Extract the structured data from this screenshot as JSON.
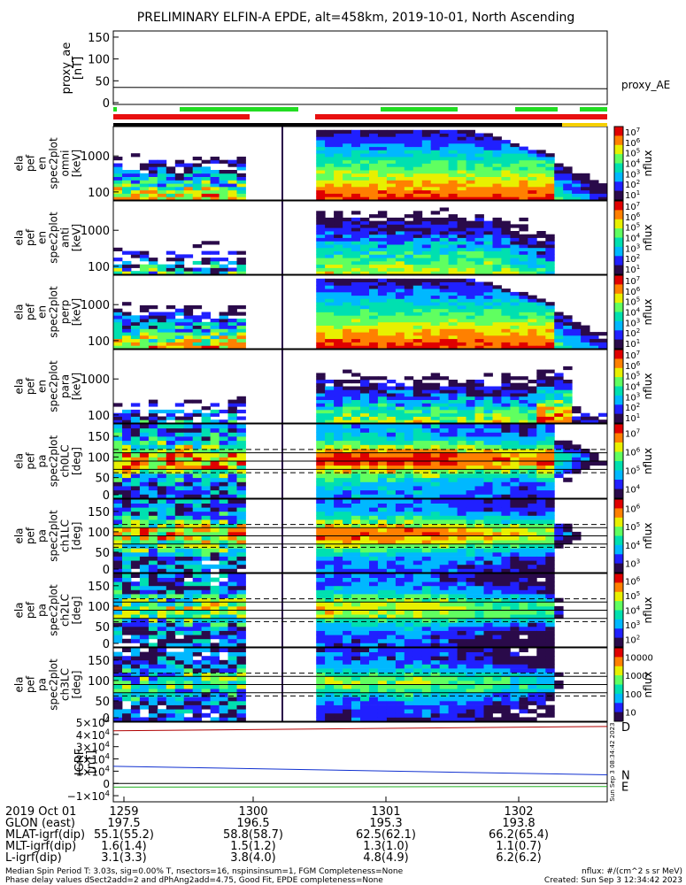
{
  "header": {
    "title": "PRELIMINARY ELFIN-A EPDE, alt=458km, 2019-10-01, North Ascending"
  },
  "colors": {
    "frame": "#000000",
    "status_green": "#22dd22",
    "status_red": "#e81010",
    "status_black": "#000000",
    "status_yellow": "#f6d000",
    "grf_d": "#b00000",
    "grf_n": "#1030d0",
    "grf_e": "#20b020",
    "colormap": [
      "#ffffff",
      "#2a0a4a",
      "#2020ff",
      "#00b8ff",
      "#00e0b0",
      "#60ff60",
      "#e8f000",
      "#ff8000",
      "#e00000"
    ]
  },
  "chart_data": [
    {
      "type": "line",
      "name": "proxy_ae",
      "ylabel": "proxy_ae\n[nT]",
      "yticks": [
        "150",
        "100",
        "50",
        "0"
      ],
      "ylim": [
        0,
        160
      ],
      "series": [
        {
          "name": "proxy_AE",
          "x": [
            0,
            1
          ],
          "values": [
            35,
            32
          ]
        }
      ]
    },
    {
      "type": "heatmap",
      "name": "omni",
      "ylabel": "ela\npef\nen\nspec2plot\nomni\n[keV]",
      "yticks": [
        "1000",
        "100"
      ],
      "log": true,
      "cbar_ticks": [
        "10^7",
        "10^6",
        "10^5",
        "10^4",
        "10^3",
        "10^2",
        "10^1"
      ],
      "cbar_label": "nflux"
    },
    {
      "type": "heatmap",
      "name": "anti",
      "ylabel": "ela\npef\nen\nspec2plot\nanti\n[keV]",
      "yticks": [
        "1000",
        "100"
      ],
      "log": true,
      "cbar_ticks": [
        "10^7",
        "10^6",
        "10^5",
        "10^4",
        "10^3",
        "10^2",
        "10^1"
      ],
      "cbar_label": "nflux"
    },
    {
      "type": "heatmap",
      "name": "perp",
      "ylabel": "ela\npef\nen\nspec2plot\nperp\n[keV]",
      "yticks": [
        "1000",
        "100"
      ],
      "log": true,
      "cbar_ticks": [
        "10^7",
        "10^6",
        "10^5",
        "10^4",
        "10^3",
        "10^2",
        "10^1"
      ],
      "cbar_label": "nflux"
    },
    {
      "type": "heatmap",
      "name": "para",
      "ylabel": "ela\npef\nen\nspec2plot\npara\n[keV]",
      "yticks": [
        "1000",
        "100"
      ],
      "log": true,
      "cbar_ticks": [
        "10^7",
        "10^6",
        "10^5",
        "10^4",
        "10^3",
        "10^2",
        "10^1"
      ],
      "cbar_label": "nflux"
    },
    {
      "type": "heatmap",
      "name": "ch0LC",
      "ylabel": "ela\npef\npa\nspec2plot\nch0LC\n[deg]",
      "yticks": [
        "150",
        "100",
        "50",
        "0"
      ],
      "ylim": [
        0,
        180
      ],
      "cbar_ticks": [
        "10^7",
        "10^6",
        "10^5",
        "10^4"
      ],
      "cbar_label": "nflux"
    },
    {
      "type": "heatmap",
      "name": "ch1LC",
      "ylabel": "ela\npef\npa\nspec2plot\nch1LC\n[deg]",
      "yticks": [
        "150",
        "100",
        "50",
        "0"
      ],
      "ylim": [
        0,
        180
      ],
      "cbar_ticks": [
        "10^6",
        "10^5",
        "10^4",
        "10^3"
      ],
      "cbar_label": "nflux"
    },
    {
      "type": "heatmap",
      "name": "ch2LC",
      "ylabel": "ela\npef\npa\nspec2plot\nch2LC\n[deg]",
      "yticks": [
        "150",
        "100",
        "50",
        "0"
      ],
      "ylim": [
        0,
        180
      ],
      "cbar_ticks": [
        "10^6",
        "10^5",
        "10^4",
        "10^3",
        "10^2"
      ],
      "cbar_label": "nflux"
    },
    {
      "type": "heatmap",
      "name": "ch3LC",
      "ylabel": "ela\npef\npa\nspec2plot\nch3LC\n[deg]",
      "yticks": [
        "150",
        "100",
        "50",
        "0"
      ],
      "ylim": [
        0,
        180
      ],
      "cbar_ticks": [
        "10000",
        "1000",
        "100",
        "10"
      ],
      "cbar_label": "nflux"
    },
    {
      "type": "line",
      "name": "IGRF",
      "ylabel": "IGRF\n[nT]",
      "yticks": [
        "5×10^4",
        "4×10^4",
        "3×10^4",
        "2×10^4",
        "1×10^4",
        "0",
        "−1×10^4"
      ],
      "ylim": [
        -15000,
        50000
      ],
      "series": [
        {
          "name": "D",
          "x": [
            0,
            1
          ],
          "values": [
            43000,
            46500
          ]
        },
        {
          "name": "N",
          "x": [
            0,
            1
          ],
          "values": [
            14000,
            7000
          ]
        },
        {
          "name": "E",
          "x": [
            0,
            1
          ],
          "values": [
            -3000,
            -2500
          ]
        }
      ],
      "stamp": "Sun Sep  3 08:34:42 2023"
    }
  ],
  "axis_table": {
    "rows": [
      {
        "label": "2019 Oct 01",
        "values": [
          "1259",
          "1300",
          "1301",
          "1302"
        ]
      },
      {
        "label": "GLON (east)",
        "values": [
          "197.5",
          "196.5",
          "195.3",
          "193.8"
        ]
      },
      {
        "label": "MLAT-igrf(dip)",
        "values": [
          "55.1(55.2)",
          "58.8(58.7)",
          "62.5(62.1)",
          "66.2(65.4)"
        ]
      },
      {
        "label": "MLT-igrf(dip)",
        "values": [
          "1.6(1.4)",
          "1.5(1.2)",
          "1.3(1.0)",
          "1.1(0.7)"
        ]
      },
      {
        "label": "L-igrf(dip)",
        "values": [
          "3.1(3.3)",
          "3.8(4.0)",
          "4.8(4.9)",
          "6.2(6.2)"
        ]
      }
    ]
  },
  "footer": {
    "line1": "Median Spin Period T: 3.03s, sig=0.00% T, nsectors=16, nspinsinsum=1, FGM Completeness=None",
    "line2": "Phase delay values dSect2add=2 and dPhAng2add=4.75, Good Fit, EPDE completeness=None",
    "units": "nflux: #/(cm^2 s sr MeV)",
    "created": "Created: Sun Sep  3 12:34:42 2023"
  }
}
